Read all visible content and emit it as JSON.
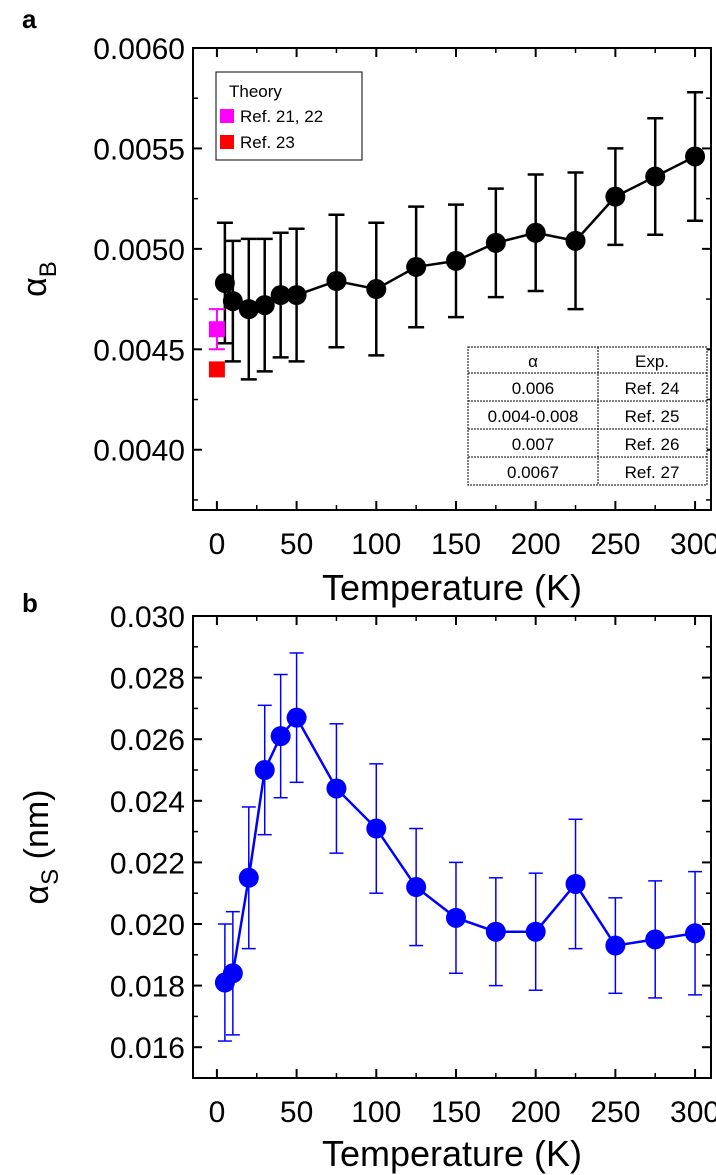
{
  "panels": {
    "a": {
      "label": "a"
    },
    "b": {
      "label": "b"
    }
  },
  "chart_data": [
    {
      "type": "scatter",
      "panel": "a",
      "title": "",
      "xlabel": "Temperature (K)",
      "ylabel": "α",
      "ylabel_sub": "B",
      "xlim": [
        -15,
        310
      ],
      "ylim": [
        0.0037,
        0.006
      ],
      "xticks": [
        0,
        50,
        100,
        150,
        200,
        250,
        300
      ],
      "yticks": [
        0.004,
        0.0045,
        0.005,
        0.0055,
        0.006
      ],
      "ytick_labels": [
        "0.0040",
        "0.0045",
        "0.0050",
        "0.0055",
        "0.0060"
      ],
      "series": [
        {
          "color": "#000000",
          "x": [
            5,
            10,
            20,
            30,
            40,
            50,
            75,
            100,
            125,
            150,
            175,
            200,
            225,
            250,
            275,
            300
          ],
          "y": [
            0.00483,
            0.00474,
            0.0047,
            0.00472,
            0.00477,
            0.00477,
            0.00484,
            0.0048,
            0.00491,
            0.00494,
            0.00503,
            0.00508,
            0.00504,
            0.00526,
            0.00536,
            0.00546
          ],
          "yerr": [
            0.0003,
            0.0003,
            0.00035,
            0.00033,
            0.00031,
            0.00033,
            0.00033,
            0.00033,
            0.0003,
            0.00028,
            0.00027,
            0.00029,
            0.00034,
            0.00024,
            0.00029,
            0.00032
          ]
        }
      ],
      "legend": {
        "title": "Theory",
        "placement": "top-left",
        "entries": [
          {
            "name": "Ref. 21, 22",
            "color": "#ff00ff",
            "x": 0,
            "y": 0.0046,
            "yerr": 0.0001
          },
          {
            "name": "Ref. 23",
            "color": "#ff0000",
            "x": 0,
            "y": 0.0044,
            "yerr": 0
          }
        ]
      },
      "table": {
        "placement": "bottom-right",
        "headers": [
          "α",
          "Exp."
        ],
        "rows": [
          [
            "0.006",
            "Ref. 24"
          ],
          [
            "0.004-0.008",
            "Ref. 25"
          ],
          [
            "0.007",
            "Ref. 26"
          ],
          [
            "0.0067",
            "Ref. 27"
          ]
        ]
      }
    },
    {
      "type": "scatter",
      "panel": "b",
      "title": "",
      "xlabel": "Temperature (K)",
      "ylabel": "α",
      "ylabel_sub": "S",
      "ylabel_unit": " (nm)",
      "xlim": [
        -15,
        310
      ],
      "ylim": [
        0.015,
        0.03
      ],
      "xticks": [
        0,
        50,
        100,
        150,
        200,
        250,
        300
      ],
      "yticks": [
        0.016,
        0.018,
        0.02,
        0.022,
        0.024,
        0.026,
        0.028,
        0.03
      ],
      "ytick_labels": [
        "0.016",
        "0.018",
        "0.020",
        "0.022",
        "0.024",
        "0.026",
        "0.028",
        "0.030"
      ],
      "series": [
        {
          "color": "#0000ff",
          "x": [
            5,
            10,
            20,
            30,
            40,
            50,
            75,
            100,
            125,
            150,
            175,
            200,
            225,
            250,
            275,
            300
          ],
          "y": [
            0.0181,
            0.0184,
            0.0215,
            0.025,
            0.0261,
            0.0267,
            0.0244,
            0.0231,
            0.0212,
            0.0202,
            0.01975,
            0.01975,
            0.0213,
            0.0193,
            0.0195,
            0.0197
          ],
          "yerr": [
            0.0019,
            0.002,
            0.0023,
            0.0021,
            0.002,
            0.0021,
            0.0021,
            0.0021,
            0.0019,
            0.0018,
            0.00175,
            0.0019,
            0.0021,
            0.00155,
            0.0019,
            0.002
          ]
        }
      ]
    }
  ]
}
